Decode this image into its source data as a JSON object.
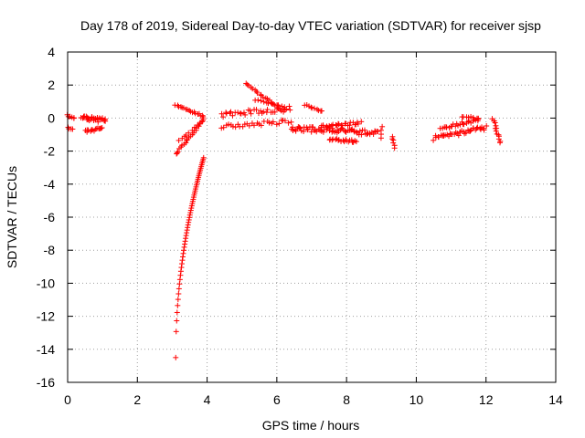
{
  "chart_data": {
    "type": "scatter",
    "title": "Day 178 of 2019, Sidereal Day-to-day VTEC variation (SDTVAR) for receiver sjsp",
    "xlabel": "GPS time / hours",
    "ylabel": "SDTVAR / TECUs",
    "xlim": [
      0,
      14
    ],
    "ylim": [
      -16,
      4
    ],
    "xticks": [
      0,
      2,
      4,
      6,
      8,
      10,
      12,
      14
    ],
    "yticks": [
      4,
      2,
      0,
      -2,
      -4,
      -6,
      -8,
      -10,
      -12,
      -14,
      -16
    ],
    "grid": true,
    "marker": "+",
    "color": "#ff0000",
    "segments": [
      {
        "x0": 0.0,
        "x1": 0.2,
        "y0": 0.2,
        "y1": 0.0,
        "n": 6,
        "jitter": 0.15
      },
      {
        "x0": 0.0,
        "x1": 0.15,
        "y0": -0.6,
        "y1": -0.7,
        "n": 4,
        "jitter": 0.08
      },
      {
        "x0": 0.4,
        "x1": 1.1,
        "y0": 0.1,
        "y1": -0.2,
        "n": 30,
        "jitter": 0.35
      },
      {
        "x0": 0.5,
        "x1": 1.0,
        "y0": -0.8,
        "y1": -0.6,
        "n": 15,
        "jitter": 0.2
      },
      {
        "x0": 3.1,
        "x1": 3.9,
        "y0": 0.8,
        "y1": 0.1,
        "n": 18,
        "jitter": 0.1
      },
      {
        "x0": 3.1,
        "x1": 3.9,
        "y0": -2.2,
        "y1": -0.1,
        "n": 22,
        "jitter": 0.12
      },
      {
        "x0": 3.2,
        "x1": 3.85,
        "y0": -1.4,
        "y1": -0.2,
        "n": 10,
        "jitter": 0.1
      },
      {
        "x0": 4.4,
        "x1": 6.4,
        "y0": 0.2,
        "y1": 0.6,
        "n": 35,
        "jitter": 0.3
      },
      {
        "x0": 4.4,
        "x1": 6.4,
        "y0": -0.5,
        "y1": -0.2,
        "n": 30,
        "jitter": 0.25
      },
      {
        "x0": 5.1,
        "x1": 6.2,
        "y0": 2.1,
        "y1": 0.4,
        "n": 22,
        "jitter": 0.08
      },
      {
        "x0": 5.4,
        "x1": 6.2,
        "y0": 1.1,
        "y1": 0.7,
        "n": 12,
        "jitter": 0.1
      },
      {
        "x0": 6.4,
        "x1": 8.9,
        "y0": -0.6,
        "y1": -0.9,
        "n": 70,
        "jitter": 0.35
      },
      {
        "x0": 6.8,
        "x1": 7.3,
        "y0": 0.8,
        "y1": 0.4,
        "n": 10,
        "jitter": 0.08
      },
      {
        "x0": 7.3,
        "x1": 8.4,
        "y0": -0.5,
        "y1": -0.3,
        "n": 25,
        "jitter": 0.2
      },
      {
        "x0": 7.5,
        "x1": 8.3,
        "y0": -1.3,
        "y1": -1.4,
        "n": 20,
        "jitter": 0.15
      },
      {
        "x0": 9.0,
        "x1": 9.0,
        "y0": -0.5,
        "y1": -1.2,
        "n": 4,
        "jitter": 0.05
      },
      {
        "x0": 9.3,
        "x1": 9.4,
        "y0": -1.1,
        "y1": -1.8,
        "n": 6,
        "jitter": 0.1
      },
      {
        "x0": 10.5,
        "x1": 12.0,
        "y0": -1.2,
        "y1": -0.6,
        "n": 40,
        "jitter": 0.3
      },
      {
        "x0": 10.7,
        "x1": 11.8,
        "y0": -0.6,
        "y1": -0.1,
        "n": 25,
        "jitter": 0.2
      },
      {
        "x0": 11.3,
        "x1": 11.8,
        "y0": 0.1,
        "y1": 0.0,
        "n": 8,
        "jitter": 0.1
      },
      {
        "x0": 12.2,
        "x1": 12.4,
        "y0": 0.0,
        "y1": -1.5,
        "n": 14,
        "jitter": 0.15
      }
    ],
    "curve_drop": {
      "x_start": 3.1,
      "x_end": 3.9,
      "y_start": -14.5,
      "y_end": -2.4,
      "n": 60
    }
  }
}
